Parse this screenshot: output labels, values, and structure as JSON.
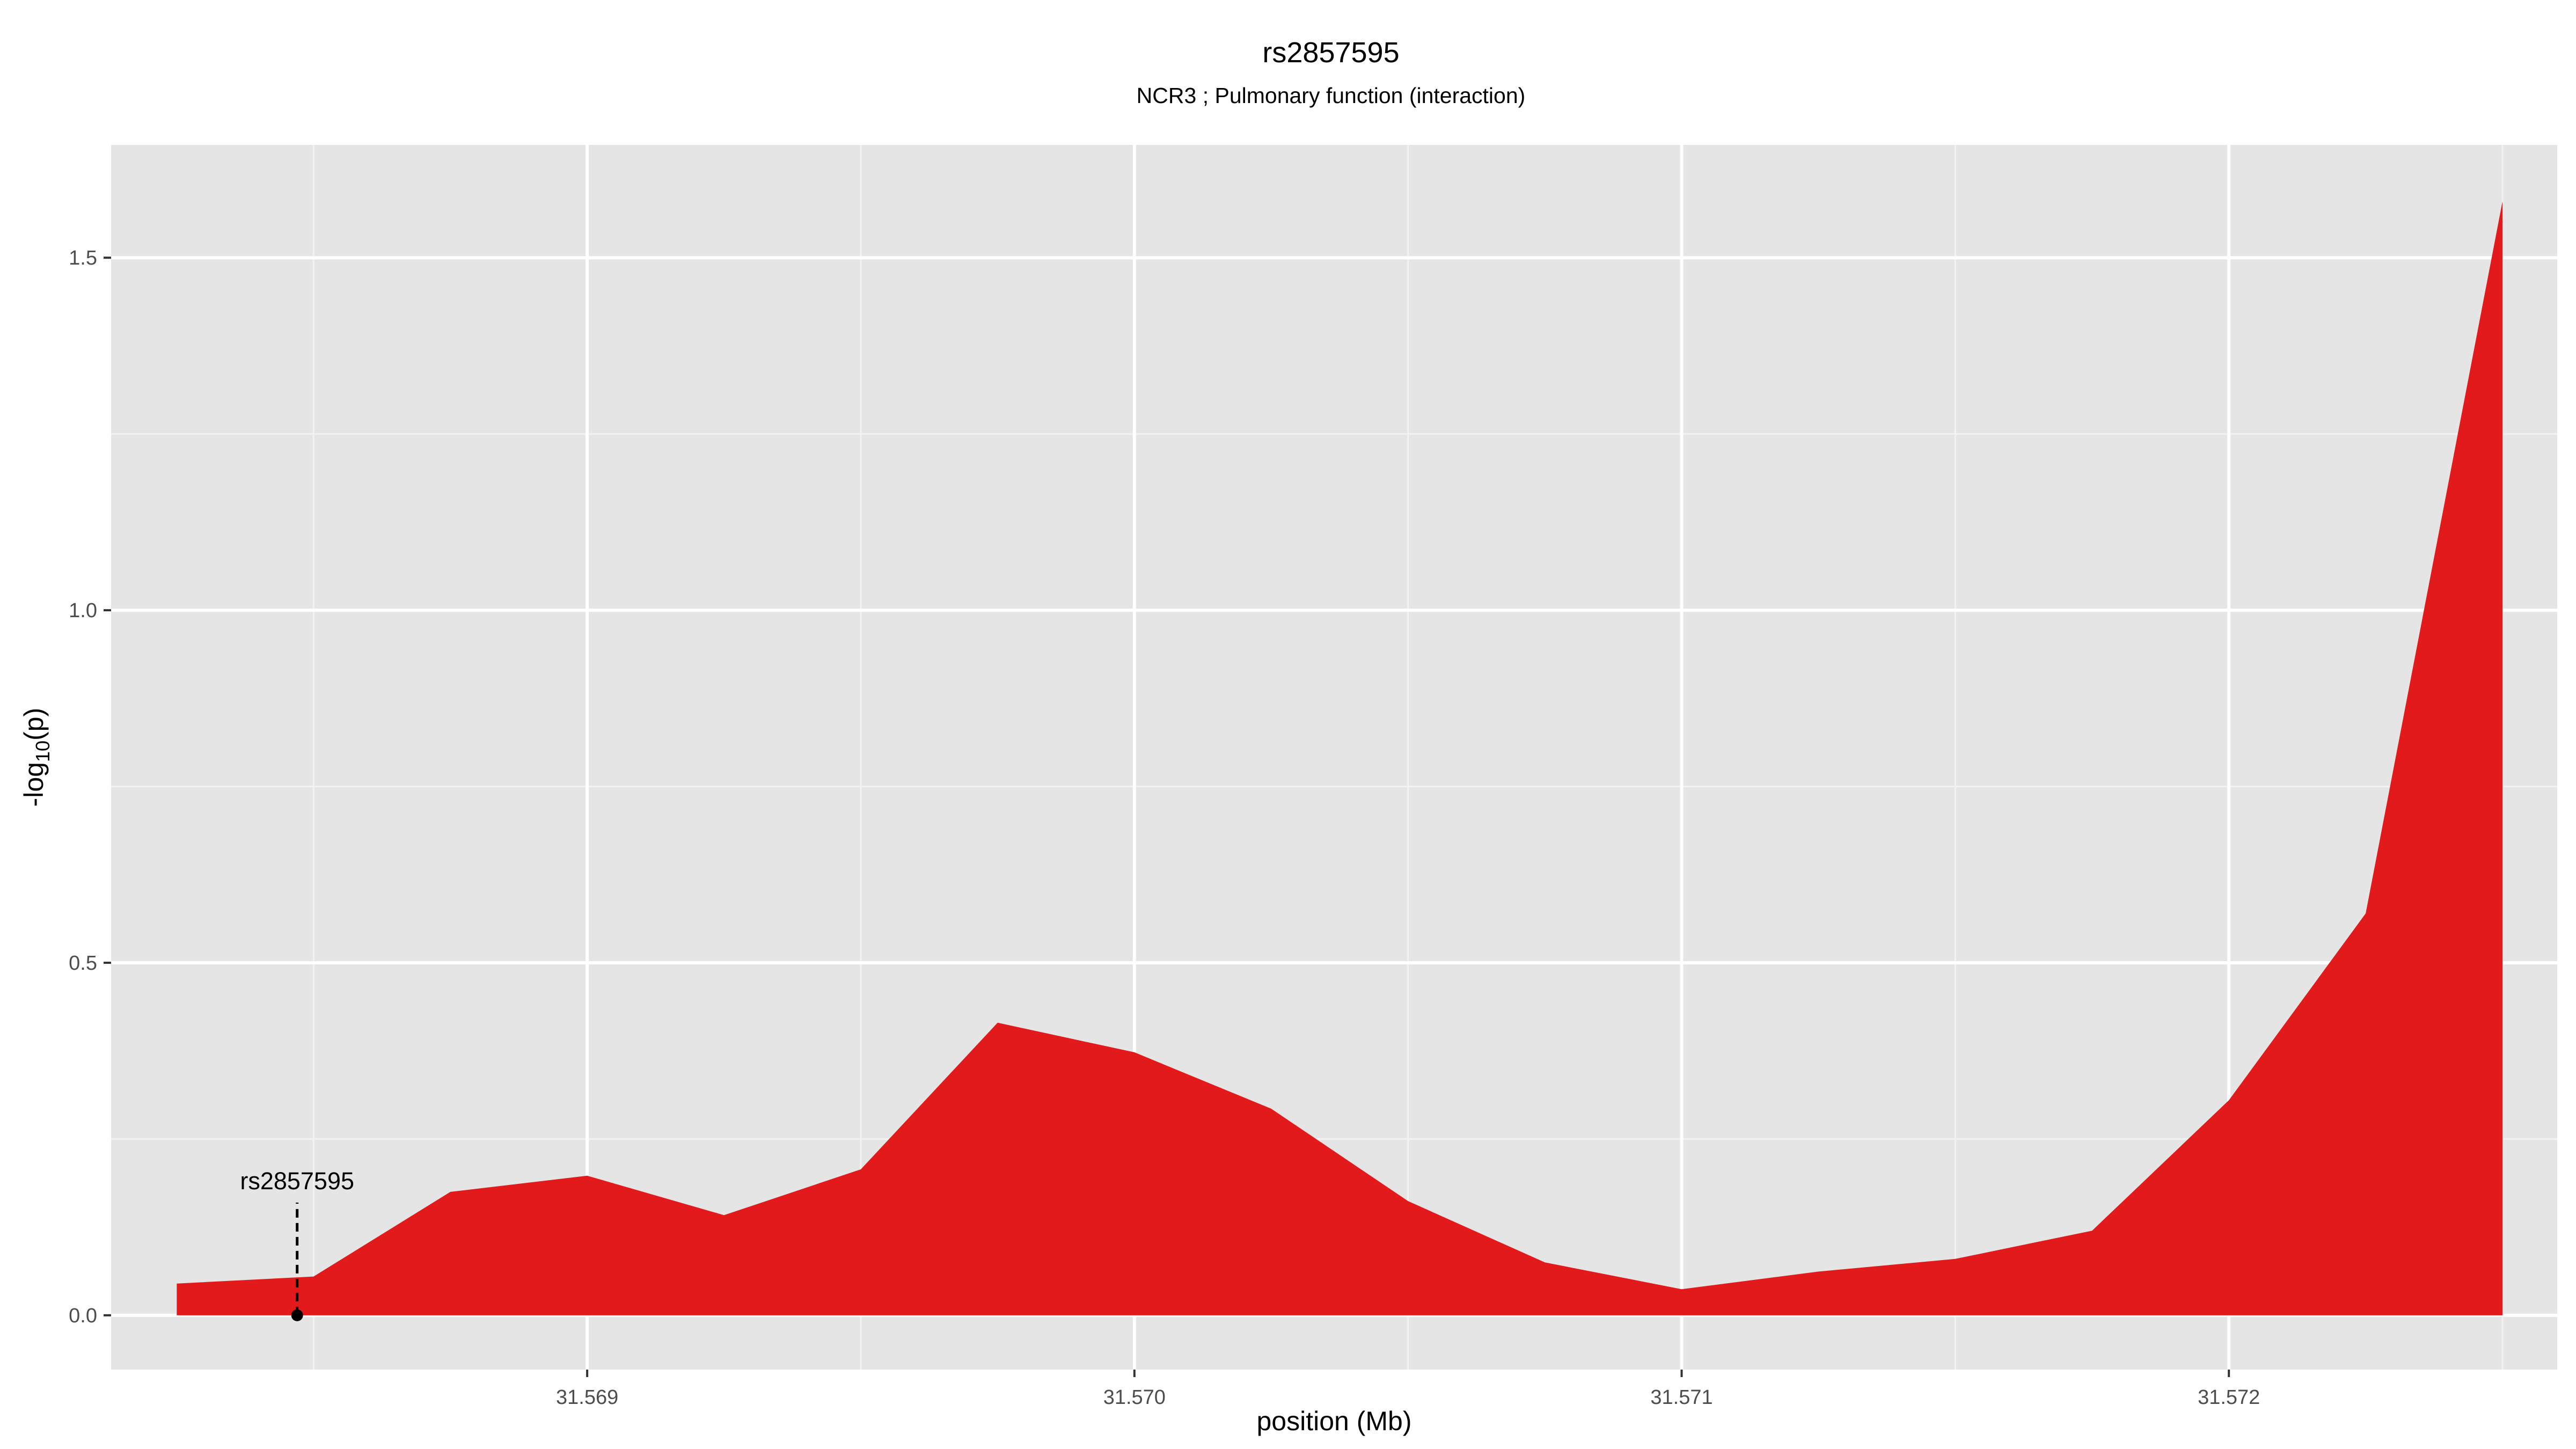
{
  "chart_data": {
    "type": "area",
    "title": "rs2857595",
    "subtitle": "NCR3 ; Pulmonary function (interaction)",
    "xlabel": "position (Mb)",
    "ylabel_main": "-log",
    "ylabel_sub": "10",
    "ylabel_tail": "(p)",
    "xlim": [
      31.56813,
      31.5726
    ],
    "ylim": [
      -0.077,
      1.66
    ],
    "x_ticks": [
      31.569,
      31.57,
      31.571,
      31.572
    ],
    "x_tick_labels": [
      "31.569",
      "31.570",
      "31.571",
      "31.572"
    ],
    "x_minor_ticks": [
      31.5685,
      31.5695,
      31.5705,
      31.5715,
      31.5725
    ],
    "y_ticks": [
      0.0,
      0.5,
      1.0,
      1.5
    ],
    "y_tick_labels": [
      "0.0",
      "0.5",
      "1.0",
      "1.5"
    ],
    "y_minor_ticks": [
      0.25,
      0.75,
      1.25
    ],
    "grid": true,
    "fill_color": "#e31a1c",
    "panel_color": "#e5e5e5",
    "grid_color": "#ffffff",
    "series": [
      {
        "x": [
          31.56825,
          31.5685,
          31.56875,
          31.569,
          31.56925,
          31.5695,
          31.56975,
          31.57,
          31.57025,
          31.5705,
          31.57075,
          31.571,
          31.57125,
          31.5715,
          31.57175,
          31.572,
          31.57225,
          31.5725
        ],
        "values": [
          0.045,
          0.055,
          0.175,
          0.198,
          0.142,
          0.207,
          0.415,
          0.373,
          0.293,
          0.162,
          0.075,
          0.037,
          0.062,
          0.08,
          0.12,
          0.305,
          0.57,
          1.58
        ]
      }
    ],
    "annotation": {
      "label": "rs2857595",
      "x": 31.56847,
      "y": 0.0
    }
  }
}
